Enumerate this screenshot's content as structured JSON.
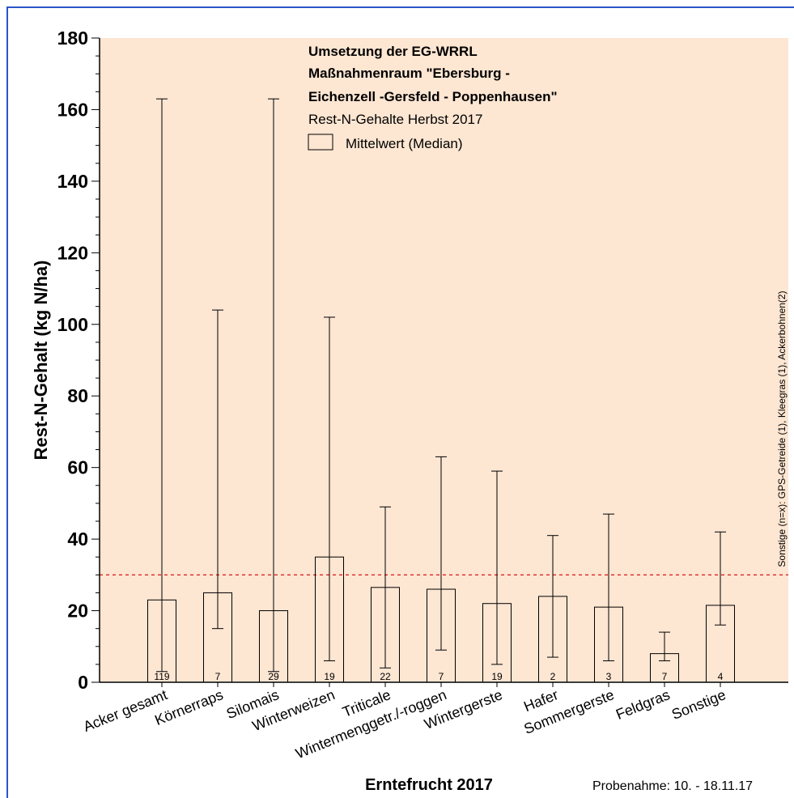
{
  "chart_data": {
    "type": "bar",
    "title_lines": [
      "Umsetzung der EG-WRRL",
      "Maßnahmenraum \"Ebersburg -",
      "Eichenzell -Gersfeld - Poppenhausen\""
    ],
    "subtitle": "Rest-N-Gehalte Herbst 2017",
    "legend": [
      "Mittelwert (Median)"
    ],
    "legend_placement": "top-center",
    "ylabel": "Rest-N-Gehalt (kg N/ha)",
    "xlabel": "Erntefrucht 2017",
    "ylim": [
      0,
      180
    ],
    "yticks": [
      0,
      20,
      40,
      60,
      80,
      100,
      120,
      140,
      160,
      180
    ],
    "categories": [
      "Acker gesamt",
      "Körnerraps",
      "Silomais",
      "Winterweizen",
      "Triticale",
      "Wintermenggetr./-roggen",
      "Wintergerste",
      "Hafer",
      "Sommergerste",
      "Feldgras",
      "Sonstige"
    ],
    "series": [
      {
        "values": [
          23,
          25,
          20,
          35,
          26.5,
          26,
          22,
          24,
          21,
          8,
          21.5
        ]
      }
    ],
    "error_min": [
      3,
      15,
      3,
      6,
      4,
      9,
      5,
      7,
      6,
      6,
      16
    ],
    "error_max": [
      163,
      104,
      163,
      102,
      49,
      63,
      59,
      41,
      47,
      14,
      42
    ],
    "n_labels": [
      "119",
      "7",
      "29",
      "19",
      "22",
      "7",
      "19",
      "2",
      "3",
      "7",
      "4"
    ],
    "reference_line": 30,
    "side_note": "Sonstige (n=x): GPS-Getreide (1), Kleegras (1), Ackerbohnen(2)",
    "footer_note": "Probenahme: 10. - 18.11.17",
    "colors": {
      "plot_background": "#fde6d2",
      "reference_line": "#d40000",
      "frame": "#2b55c8"
    },
    "grid": false
  }
}
